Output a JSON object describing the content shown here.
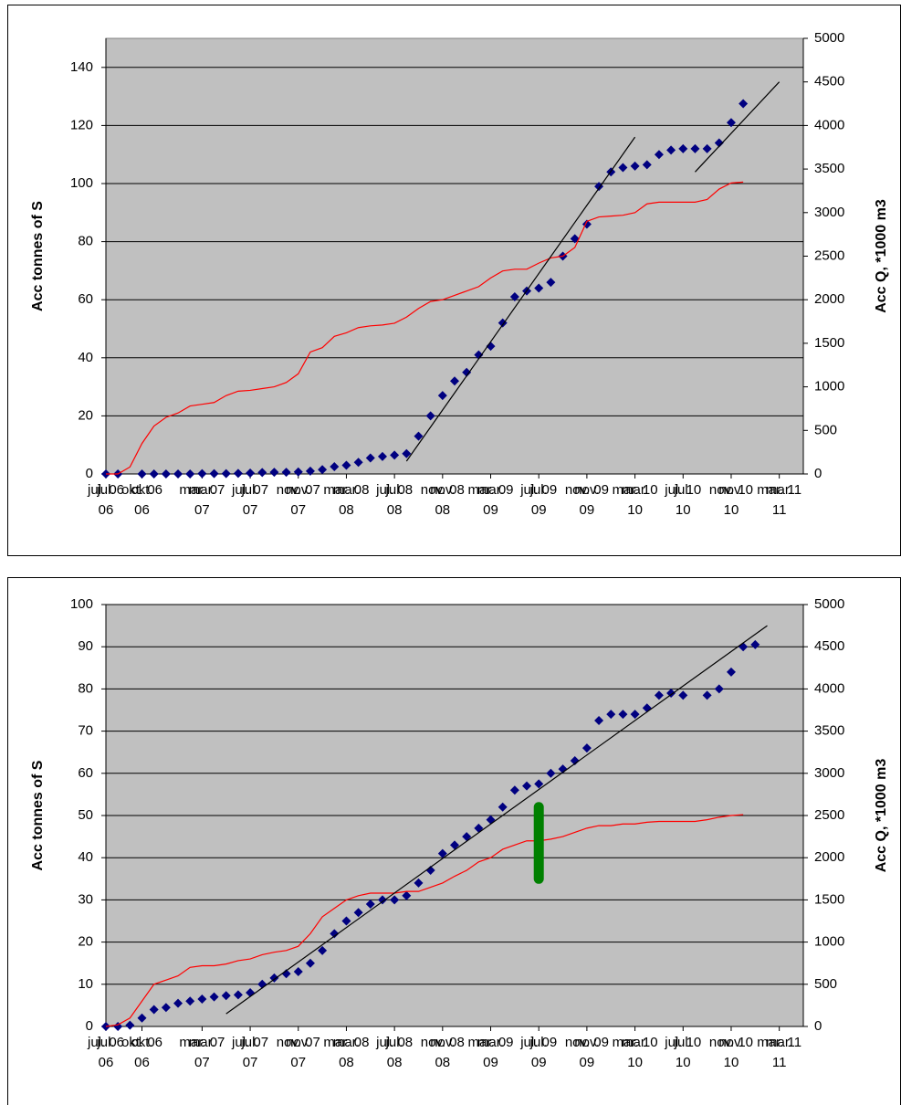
{
  "chart_data": [
    {
      "type": "scatter",
      "ylabel": "Acc tonnes of S",
      "y2label": "Acc Q, *1000 m3",
      "ylim": [
        0,
        150
      ],
      "yticks": [
        0,
        20,
        40,
        60,
        80,
        100,
        120,
        140
      ],
      "y2lim": [
        0,
        5000
      ],
      "y2ticks": [
        0,
        500,
        1000,
        1500,
        2000,
        2500,
        3000,
        3500,
        4000,
        4500,
        5000
      ],
      "xlim": [
        "2006-07",
        "2011-05"
      ],
      "xticks": [
        {
          "value": "2006-07",
          "label": "jul. 06"
        },
        {
          "value": "2006-10",
          "label": "okt. 06"
        },
        {
          "value": "2007-03",
          "label": "mar. 07"
        },
        {
          "value": "2007-07",
          "label": "jul. 07"
        },
        {
          "value": "2007-11",
          "label": "nov. 07"
        },
        {
          "value": "2008-03",
          "label": "mar. 08"
        },
        {
          "value": "2008-07",
          "label": "jul. 08"
        },
        {
          "value": "2008-11",
          "label": "nov. 08"
        },
        {
          "value": "2009-03",
          "label": "mar. 09"
        },
        {
          "value": "2009-07",
          "label": "jul. 09"
        },
        {
          "value": "2009-11",
          "label": "nov. 09"
        },
        {
          "value": "2010-03",
          "label": "mar. 10"
        },
        {
          "value": "2010-07",
          "label": "jul. 10"
        },
        {
          "value": "2010-11",
          "label": "nov. 10"
        },
        {
          "value": "2011-03",
          "label": "mar. 11"
        }
      ],
      "grid": true,
      "series": [
        {
          "style": "marker",
          "color": "#000080",
          "x": [
            "2006-07",
            "2006-08",
            "2006-10",
            "2006-11",
            "2006-12",
            "2007-01",
            "2007-02",
            "2007-03",
            "2007-04",
            "2007-05",
            "2007-06",
            "2007-07",
            "2007-08",
            "2007-09",
            "2007-10",
            "2007-11",
            "2007-12",
            "2008-01",
            "2008-02",
            "2008-03",
            "2008-04",
            "2008-05",
            "2008-06",
            "2008-07",
            "2008-08",
            "2008-09",
            "2008-10",
            "2008-11",
            "2008-12",
            "2009-01",
            "2009-02",
            "2009-03",
            "2009-04",
            "2009-05",
            "2009-06",
            "2009-07",
            "2009-08",
            "2009-09",
            "2009-10",
            "2009-11",
            "2009-12",
            "2010-01",
            "2010-02",
            "2010-03",
            "2010-04",
            "2010-05",
            "2010-06",
            "2010-07",
            "2010-08",
            "2010-09",
            "2010-10",
            "2010-11",
            "2010-12"
          ],
          "values": [
            0,
            0,
            0,
            0,
            0,
            0,
            0,
            0.1,
            0.1,
            0.1,
            0.2,
            0.3,
            0.5,
            0.6,
            0.6,
            0.7,
            1,
            1.5,
            2.5,
            3,
            4,
            5.5,
            6,
            6.5,
            7,
            13,
            20,
            27,
            32,
            35,
            41,
            44,
            52,
            61,
            63,
            64,
            66,
            75,
            81,
            86,
            99,
            104,
            105.5,
            106,
            106.5,
            110,
            111.5,
            112,
            112,
            112,
            114,
            121,
            127.5
          ]
        },
        {
          "style": "line",
          "color": "#ff0000",
          "axis": "y2",
          "x": [
            "2006-07",
            "2006-08",
            "2006-09",
            "2006-10",
            "2006-11",
            "2006-12",
            "2007-01",
            "2007-02",
            "2007-03",
            "2007-04",
            "2007-05",
            "2007-06",
            "2007-07",
            "2007-08",
            "2007-09",
            "2007-10",
            "2007-11",
            "2007-12",
            "2008-01",
            "2008-02",
            "2008-03",
            "2008-04",
            "2008-05",
            "2008-06",
            "2008-07",
            "2008-08",
            "2008-09",
            "2008-10",
            "2008-11",
            "2008-12",
            "2009-01",
            "2009-02",
            "2009-03",
            "2009-04",
            "2009-05",
            "2009-06",
            "2009-07",
            "2009-08",
            "2009-09",
            "2009-10",
            "2009-11",
            "2009-12",
            "2010-01",
            "2010-02",
            "2010-03",
            "2010-04",
            "2010-05",
            "2010-06",
            "2010-07",
            "2010-08",
            "2010-09",
            "2010-10",
            "2010-11",
            "2010-12"
          ],
          "values": [
            0,
            0,
            80,
            350,
            550,
            650,
            700,
            780,
            800,
            820,
            900,
            950,
            960,
            980,
            1000,
            1050,
            1150,
            1400,
            1450,
            1580,
            1620,
            1680,
            1700,
            1710,
            1730,
            1800,
            1900,
            1980,
            2000,
            2050,
            2100,
            2150,
            2250,
            2330,
            2350,
            2350,
            2420,
            2480,
            2500,
            2600,
            2900,
            2950,
            2960,
            2970,
            3000,
            3100,
            3120,
            3120,
            3120,
            3120,
            3150,
            3270,
            3340,
            3350
          ]
        },
        {
          "style": "line",
          "color": "#000000",
          "x": [
            "2008-08",
            "2010-03"
          ],
          "values": [
            4.4,
            116
          ]
        },
        {
          "style": "line",
          "color": "#000000",
          "x": [
            "2010-08",
            "2011-03"
          ],
          "values": [
            104,
            135
          ]
        }
      ]
    },
    {
      "type": "scatter",
      "ylabel": "Acc tonnes of S",
      "y2label": "Acc Q, *1000 m3",
      "ylim": [
        0,
        100
      ],
      "yticks": [
        0,
        10,
        20,
        30,
        40,
        50,
        60,
        70,
        80,
        90,
        100
      ],
      "y2lim": [
        0,
        5000
      ],
      "y2ticks": [
        0,
        500,
        1000,
        1500,
        2000,
        2500,
        3000,
        3500,
        4000,
        4500,
        5000
      ],
      "xlim": [
        "2006-07",
        "2011-05"
      ],
      "xticks": [
        {
          "value": "2006-07",
          "label": "jul. 06"
        },
        {
          "value": "2006-10",
          "label": "okt. 06"
        },
        {
          "value": "2007-03",
          "label": "mar. 07"
        },
        {
          "value": "2007-07",
          "label": "jul. 07"
        },
        {
          "value": "2007-11",
          "label": "nov. 07"
        },
        {
          "value": "2008-03",
          "label": "mar. 08"
        },
        {
          "value": "2008-07",
          "label": "jul. 08"
        },
        {
          "value": "2008-11",
          "label": "nov. 08"
        },
        {
          "value": "2009-03",
          "label": "mar. 09"
        },
        {
          "value": "2009-07",
          "label": "jul. 09"
        },
        {
          "value": "2009-11",
          "label": "nov. 09"
        },
        {
          "value": "2010-03",
          "label": "mar. 10"
        },
        {
          "value": "2010-07",
          "label": "jul. 10"
        },
        {
          "value": "2010-11",
          "label": "nov. 10"
        },
        {
          "value": "2011-03",
          "label": "mar. 11"
        }
      ],
      "grid": true,
      "series": [
        {
          "style": "marker",
          "color": "#000080",
          "x": [
            "2006-07",
            "2006-08",
            "2006-09",
            "2006-10",
            "2006-11",
            "2006-12",
            "2007-01",
            "2007-02",
            "2007-03",
            "2007-04",
            "2007-05",
            "2007-06",
            "2007-07",
            "2007-08",
            "2007-09",
            "2007-10",
            "2007-11",
            "2007-12",
            "2008-01",
            "2008-02",
            "2008-03",
            "2008-04",
            "2008-05",
            "2008-06",
            "2008-07",
            "2008-08",
            "2008-09",
            "2008-10",
            "2008-11",
            "2008-12",
            "2009-01",
            "2009-02",
            "2009-03",
            "2009-04",
            "2009-05",
            "2009-06",
            "2009-07",
            "2009-08",
            "2009-09",
            "2009-10",
            "2009-11",
            "2009-12",
            "2010-01",
            "2010-02",
            "2010-03",
            "2010-04",
            "2010-05",
            "2010-06",
            "2010-07",
            "2010-09",
            "2010-10",
            "2010-11",
            "2010-12",
            "2011-01"
          ],
          "values": [
            0,
            0,
            0.3,
            2,
            4,
            4.5,
            5.5,
            6,
            6.5,
            7,
            7.3,
            7.5,
            8,
            10,
            11.5,
            12.5,
            13,
            15,
            18,
            22,
            25,
            27,
            29,
            30,
            30,
            31,
            34,
            37,
            41,
            43,
            45,
            47,
            49,
            52,
            56,
            57,
            57.5,
            60,
            61,
            63,
            66,
            72.5,
            74,
            74,
            74,
            75.5,
            78.5,
            79,
            78.5,
            78.5,
            80,
            84,
            90,
            90.5
          ]
        },
        {
          "style": "line",
          "color": "#ff0000",
          "axis": "y2",
          "x": [
            "2006-07",
            "2006-08",
            "2006-09",
            "2006-10",
            "2006-11",
            "2006-12",
            "2007-01",
            "2007-02",
            "2007-03",
            "2007-04",
            "2007-05",
            "2007-06",
            "2007-07",
            "2007-08",
            "2007-09",
            "2007-10",
            "2007-11",
            "2007-12",
            "2008-01",
            "2008-02",
            "2008-03",
            "2008-04",
            "2008-05",
            "2008-06",
            "2008-07",
            "2008-08",
            "2008-09",
            "2008-10",
            "2008-11",
            "2008-12",
            "2009-01",
            "2009-02",
            "2009-03",
            "2009-04",
            "2009-05",
            "2009-06",
            "2009-07",
            "2009-08",
            "2009-09",
            "2009-10",
            "2009-11",
            "2009-12",
            "2010-01",
            "2010-02",
            "2010-03",
            "2010-04",
            "2010-05",
            "2010-06",
            "2010-07",
            "2010-08",
            "2010-09",
            "2010-10",
            "2010-11",
            "2010-12"
          ],
          "values": [
            0,
            20,
            100,
            300,
            500,
            550,
            600,
            700,
            720,
            720,
            740,
            780,
            800,
            850,
            880,
            900,
            950,
            1100,
            1300,
            1400,
            1500,
            1550,
            1580,
            1580,
            1580,
            1600,
            1600,
            1650,
            1700,
            1780,
            1850,
            1950,
            2000,
            2100,
            2150,
            2200,
            2200,
            2220,
            2250,
            2300,
            2350,
            2380,
            2380,
            2400,
            2400,
            2420,
            2430,
            2430,
            2430,
            2430,
            2450,
            2480,
            2500,
            2510
          ]
        },
        {
          "style": "line",
          "color": "#000000",
          "x": [
            "2007-05",
            "2011-02"
          ],
          "values": [
            3,
            95
          ]
        }
      ],
      "marker": {
        "x": "2009-07",
        "values": [
          35,
          52
        ],
        "color": "#008000"
      }
    }
  ]
}
